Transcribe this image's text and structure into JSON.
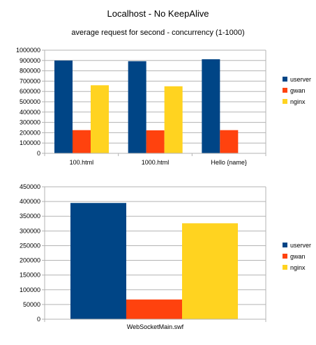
{
  "title": "Localhost - No KeepAlive",
  "subtitle": "average request for second - concurrency (1-1000)",
  "chart_data": [
    {
      "type": "bar",
      "categories": [
        "100.html",
        "1000.html",
        "Hello {name}"
      ],
      "series": [
        {
          "name": "userver",
          "color": "#004586",
          "values": [
            900000,
            893000,
            912000
          ]
        },
        {
          "name": "gwan",
          "color": "#ff420e",
          "values": [
            225000,
            223000,
            225000
          ]
        },
        {
          "name": "nginx",
          "color": "#ffd320",
          "values": [
            660000,
            650000,
            0
          ]
        }
      ],
      "ylim": [
        0,
        1000000
      ],
      "ytick_step": 100000,
      "grid": true,
      "legend": "right"
    },
    {
      "type": "bar",
      "categories": [
        "WebSocketMain.swf"
      ],
      "series": [
        {
          "name": "userver",
          "color": "#004586",
          "values": [
            395000
          ]
        },
        {
          "name": "gwan",
          "color": "#ff420e",
          "values": [
            67000
          ]
        },
        {
          "name": "nginx",
          "color": "#ffd320",
          "values": [
            326000
          ]
        }
      ],
      "ylim": [
        0,
        450000
      ],
      "ytick_step": 50000,
      "grid": true,
      "legend": "right"
    }
  ]
}
